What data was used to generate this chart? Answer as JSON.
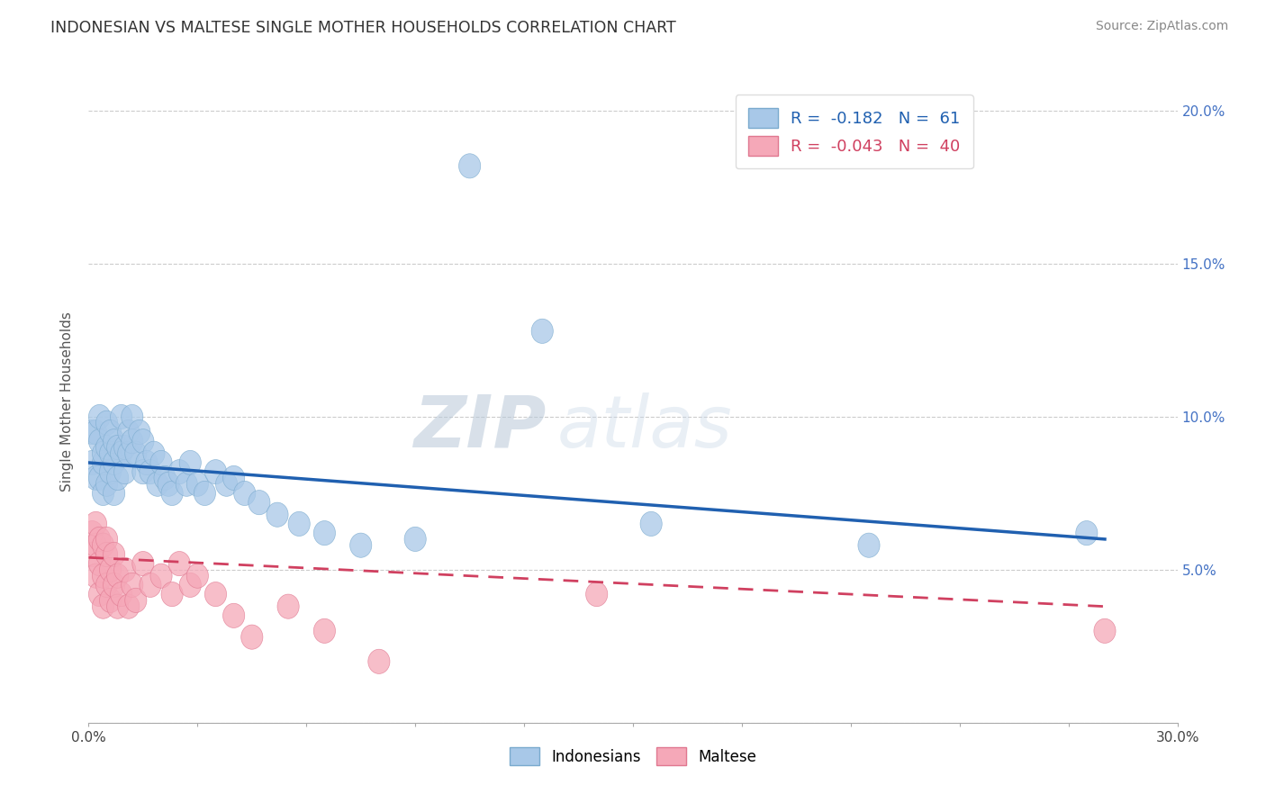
{
  "title": "INDONESIAN VS MALTESE SINGLE MOTHER HOUSEHOLDS CORRELATION CHART",
  "source": "Source: ZipAtlas.com",
  "ylabel": "Single Mother Households",
  "xlim": [
    0.0,
    0.3
  ],
  "ylim": [
    0.0,
    0.21
  ],
  "ytick_labels": [
    "",
    "5.0%",
    "10.0%",
    "15.0%",
    "20.0%"
  ],
  "xtick_labels": [
    "0.0%",
    "",
    "",
    "",
    "",
    "",
    "",
    "",
    "",
    "",
    "30.0%"
  ],
  "indonesian_R": -0.182,
  "indonesian_N": 61,
  "maltese_R": -0.043,
  "maltese_N": 40,
  "watermark_zip": "ZIP",
  "watermark_atlas": "atlas",
  "indonesian_color": "#a8c8e8",
  "indonesian_edge": "#7aaace",
  "maltese_color": "#f5a8b8",
  "maltese_edge": "#e07890",
  "indonesian_line_color": "#2060b0",
  "maltese_line_color": "#d04060",
  "background_color": "#ffffff",
  "indonesian_x": [
    0.001,
    0.001,
    0.002,
    0.002,
    0.003,
    0.003,
    0.003,
    0.004,
    0.004,
    0.004,
    0.005,
    0.005,
    0.005,
    0.006,
    0.006,
    0.006,
    0.007,
    0.007,
    0.007,
    0.008,
    0.008,
    0.009,
    0.009,
    0.01,
    0.01,
    0.011,
    0.011,
    0.012,
    0.012,
    0.013,
    0.014,
    0.015,
    0.015,
    0.016,
    0.017,
    0.018,
    0.019,
    0.02,
    0.021,
    0.022,
    0.023,
    0.025,
    0.027,
    0.028,
    0.03,
    0.032,
    0.035,
    0.038,
    0.04,
    0.043,
    0.047,
    0.052,
    0.058,
    0.065,
    0.075,
    0.09,
    0.105,
    0.125,
    0.155,
    0.215,
    0.275
  ],
  "indonesian_y": [
    0.085,
    0.095,
    0.08,
    0.095,
    0.08,
    0.092,
    0.1,
    0.075,
    0.085,
    0.088,
    0.078,
    0.09,
    0.098,
    0.082,
    0.088,
    0.095,
    0.075,
    0.085,
    0.092,
    0.08,
    0.09,
    0.088,
    0.1,
    0.082,
    0.09,
    0.088,
    0.095,
    0.092,
    0.1,
    0.088,
    0.095,
    0.082,
    0.092,
    0.085,
    0.082,
    0.088,
    0.078,
    0.085,
    0.08,
    0.078,
    0.075,
    0.082,
    0.078,
    0.085,
    0.078,
    0.075,
    0.082,
    0.078,
    0.08,
    0.075,
    0.072,
    0.068,
    0.065,
    0.062,
    0.058,
    0.06,
    0.182,
    0.128,
    0.065,
    0.058,
    0.062
  ],
  "maltese_x": [
    0.001,
    0.001,
    0.002,
    0.002,
    0.002,
    0.003,
    0.003,
    0.003,
    0.004,
    0.004,
    0.004,
    0.005,
    0.005,
    0.005,
    0.006,
    0.006,
    0.007,
    0.007,
    0.008,
    0.008,
    0.009,
    0.01,
    0.011,
    0.012,
    0.013,
    0.015,
    0.017,
    0.02,
    0.023,
    0.025,
    0.028,
    0.03,
    0.035,
    0.04,
    0.045,
    0.055,
    0.065,
    0.08,
    0.14,
    0.28
  ],
  "maltese_y": [
    0.062,
    0.055,
    0.048,
    0.058,
    0.065,
    0.042,
    0.052,
    0.06,
    0.038,
    0.048,
    0.058,
    0.045,
    0.055,
    0.06,
    0.04,
    0.05,
    0.045,
    0.055,
    0.038,
    0.048,
    0.042,
    0.05,
    0.038,
    0.045,
    0.04,
    0.052,
    0.045,
    0.048,
    0.042,
    0.052,
    0.045,
    0.048,
    0.042,
    0.035,
    0.028,
    0.038,
    0.03,
    0.02,
    0.042,
    0.03
  ]
}
